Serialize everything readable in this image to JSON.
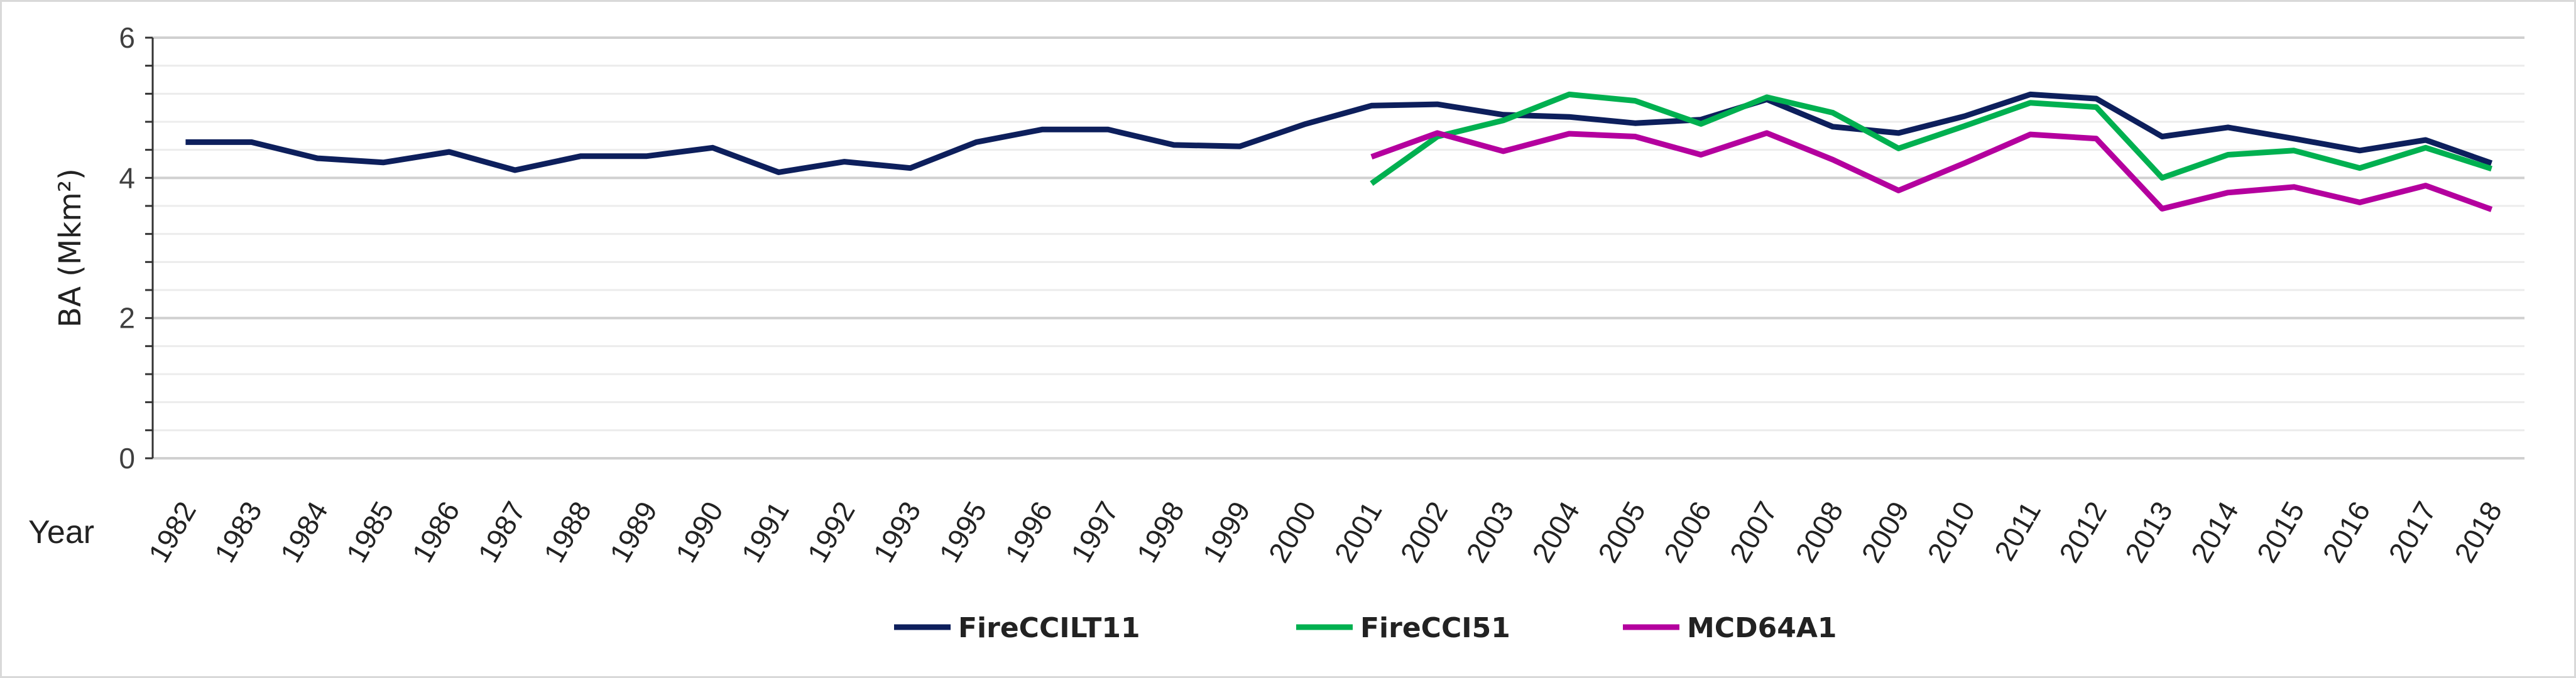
{
  "chart_data": {
    "type": "line",
    "title": "",
    "xlabel": "Year",
    "ylabel": "BA (Mkm²)",
    "ylim": [
      0,
      6
    ],
    "yticks": [
      "0",
      "2",
      "4",
      "6"
    ],
    "grid": true,
    "legend_position": "bottom",
    "categories": [
      "1982",
      "1983",
      "1984",
      "1985",
      "1986",
      "1987",
      "1988",
      "1989",
      "1990",
      "1991",
      "1992",
      "1993",
      "1995",
      "1996",
      "1997",
      "1998",
      "1999",
      "2000",
      "2001",
      "2002",
      "2003",
      "2004",
      "2005",
      "2006",
      "2007",
      "2008",
      "2009",
      "2010",
      "2011",
      "2012",
      "2013",
      "2014",
      "2015",
      "2016",
      "2017",
      "2018"
    ],
    "series": [
      {
        "name": "FireCCILT11",
        "color": "#0d1f5c",
        "values": [
          4.51,
          4.51,
          4.28,
          4.22,
          4.37,
          4.11,
          4.31,
          4.31,
          4.43,
          4.08,
          4.23,
          4.14,
          4.51,
          4.69,
          4.69,
          4.47,
          4.45,
          4.77,
          5.03,
          5.05,
          4.9,
          4.87,
          4.78,
          4.83,
          5.12,
          4.73,
          4.64,
          4.88,
          5.19,
          5.13,
          4.59,
          4.72,
          4.56,
          4.39,
          4.54,
          4.21
        ]
      },
      {
        "name": "FireCCI51",
        "color": "#00b050",
        "values": [
          null,
          null,
          null,
          null,
          null,
          null,
          null,
          null,
          null,
          null,
          null,
          null,
          null,
          null,
          null,
          null,
          null,
          null,
          3.92,
          4.59,
          4.82,
          5.19,
          5.1,
          4.77,
          5.15,
          4.93,
          4.42,
          4.74,
          5.07,
          5.01,
          4.0,
          4.33,
          4.39,
          4.14,
          4.43,
          4.13
        ]
      },
      {
        "name": "MCD64A1",
        "color": "#b4009e",
        "values": [
          null,
          null,
          null,
          null,
          null,
          null,
          null,
          null,
          null,
          null,
          null,
          null,
          null,
          null,
          null,
          null,
          null,
          null,
          4.3,
          4.64,
          4.38,
          4.63,
          4.59,
          4.33,
          4.64,
          4.26,
          3.82,
          4.21,
          4.62,
          4.56,
          3.56,
          3.79,
          3.87,
          3.65,
          3.89,
          3.55
        ]
      }
    ]
  }
}
